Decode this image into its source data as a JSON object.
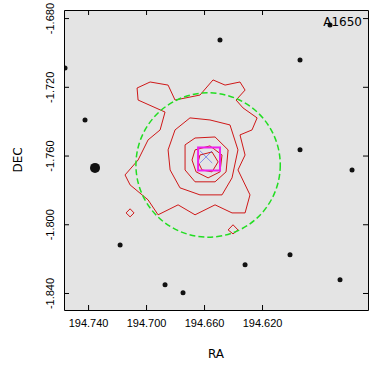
{
  "chart_data": {
    "type": "contour",
    "title": "A1650",
    "xlabel": "RA",
    "ylabel": "DEC",
    "xlim": [
      194.7566,
      194.5469
    ],
    "ylim": [
      -1.8499,
      -1.6753
    ],
    "xticks": [
      {
        "value": 194.74,
        "label": "194.740"
      },
      {
        "value": 194.7,
        "label": "194.700"
      },
      {
        "value": 194.66,
        "label": "194.660"
      },
      {
        "value": 194.62,
        "label": "194.620"
      }
    ],
    "yticks": [
      {
        "value": -1.84,
        "label": "-1.840"
      },
      {
        "value": -1.8,
        "label": "-1.800"
      },
      {
        "value": -1.76,
        "label": "-1.760"
      },
      {
        "value": -1.72,
        "label": "-1.720"
      },
      {
        "value": -1.68,
        "label": "-1.680"
      }
    ],
    "color": "#cc0000",
    "contours": [
      {
        "ra": [
          194.7062,
          194.6972,
          194.6848,
          194.68,
          194.6628,
          194.6538,
          194.6455,
          194.6352,
          194.6317,
          194.6379,
          194.6331,
          194.6234,
          194.6269,
          194.6352,
          194.6317,
          194.6366,
          194.6283,
          194.6317,
          194.6407,
          194.6524,
          194.6662,
          194.6779,
          194.6917,
          194.6986,
          194.711,
          194.7145,
          194.7055,
          194.6986,
          194.6903,
          194.6869,
          194.7055
        ],
        "dec": [
          -1.7207,
          -1.7172,
          -1.719,
          -1.7277,
          -1.7248,
          -1.716,
          -1.719,
          -1.7172,
          -1.7219,
          -1.7277,
          -1.7323,
          -1.7381,
          -1.7451,
          -1.748,
          -1.7597,
          -1.7684,
          -1.7829,
          -1.7934,
          -1.7934,
          -1.7887,
          -1.7945,
          -1.7887,
          -1.7945,
          -1.7858,
          -1.7771,
          -1.7713,
          -1.7626,
          -1.7509,
          -1.7451,
          -1.7347,
          -1.7277
        ]
      },
      {
        "ra": [
          194.68,
          194.6697,
          194.6559,
          194.6421,
          194.6366,
          194.6407,
          194.6476,
          194.6628,
          194.6766,
          194.6834,
          194.6848
        ],
        "dec": [
          -1.7451,
          -1.7381,
          -1.7393,
          -1.7422,
          -1.7567,
          -1.773,
          -1.7829,
          -1.7829,
          -1.7788,
          -1.7684,
          -1.7567
        ]
      },
      {
        "ra": [
          194.6731,
          194.6662,
          194.6524,
          194.6434,
          194.6448,
          194.6524,
          194.6662,
          194.6731
        ],
        "dec": [
          -1.7538,
          -1.7498,
          -1.7492,
          -1.7567,
          -1.7695,
          -1.7753,
          -1.7753,
          -1.7684
        ]
      },
      {
        "ra": [
          194.6662,
          194.6559,
          194.6476,
          194.649,
          194.6572,
          194.6655,
          194.6683
        ],
        "dec": [
          -1.7567,
          -1.7544,
          -1.7597,
          -1.7695,
          -1.773,
          -1.7695,
          -1.7626
        ]
      },
      {
        "ra": [
          194.6628,
          194.6545,
          194.6503,
          194.6545,
          194.6614,
          194.6641
        ],
        "dec": [
          -1.7597,
          -1.7579,
          -1.7637,
          -1.7695,
          -1.7684,
          -1.7637
        ]
      },
      {
        "ra": [
          194.7138,
          194.711,
          194.7083,
          194.711
        ],
        "dec": [
          -1.7934,
          -1.791,
          -1.7934,
          -1.7957
        ]
      },
      {
        "ra": [
          194.6434,
          194.64,
          194.6366,
          194.64
        ],
        "dec": [
          -1.8033,
          -1.8003,
          -1.8033,
          -1.8056
        ]
      }
    ],
    "circle": {
      "ra": 194.6572,
      "dec": -1.7655,
      "radius": 0.042,
      "color": "#22dd22",
      "line_style": "dashed"
    },
    "box": {
      "ra": [
        194.6641,
        194.649
      ],
      "dec": [
        -1.7553,
        -1.7687
      ],
      "color": "#ee22ee"
    },
    "peak": {
      "ra": 194.6586,
      "dec": -1.7608,
      "color": "#2233ee",
      "marker": "x"
    },
    "stars": {
      "ra": [
        194.7352,
        194.6745,
        194.7559,
        194.649,
        194.5938,
        194.5731,
        194.5579,
        194.5938,
        194.6007,
        194.7179,
        194.6317,
        194.6869,
        194.7421,
        194.5662
      ],
      "dec": [
        -1.7672,
        -1.8399,
        -1.7091,
        -1.6928,
        -1.7044,
        -1.6841,
        -1.7684,
        -1.7567,
        -1.8178,
        -1.812,
        -1.8236,
        -1.8352,
        -1.7393,
        -1.8323
      ]
    }
  }
}
